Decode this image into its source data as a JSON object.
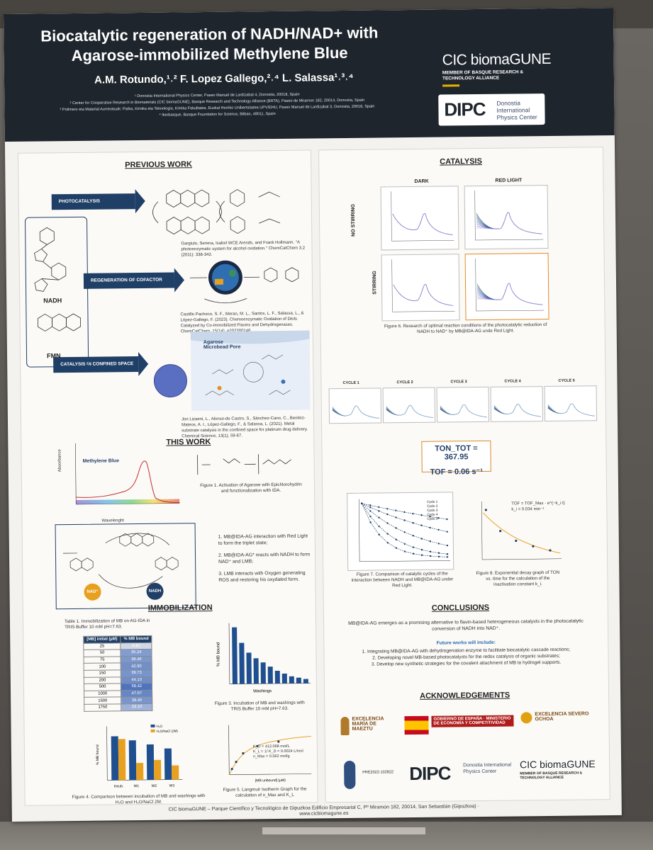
{
  "header": {
    "title_line1": "Biocatalytic regeneration of NADH/NAD+ with",
    "title_line2": "Agarose-immobilized Methylene Blue",
    "authors": "A.M. Rotundo,¹˒² F. Lopez Gallego,²˒⁴ L. Salassa¹˒³˒⁴",
    "affiliations": [
      "¹ Donostia International Physics Center, Paseo Manuel de Lardizabal 4, Donostia, 20018, Spain",
      "² Center for Cooperative Research in Biomaterials (CIC biomaGUNE), Basque Research and Technology Alliance (BRTA), Paseo de Miramon 182, 20014, Donostia, Spain",
      "³ Polimero eta Material Aurreratuak: Fisika, Kimika eta Teknologia, Kimika Fakultatea, Euskal Herriko Unibertsitatea UPV/EHU, Paseo Manuel de Lardizabal 3, Donostia, 20018, Spain",
      "⁴ Ikerbasque, Basque Foundation for Science, Bilbao, 48011, Spain"
    ],
    "cic_logo": "CIC biomaGUNE",
    "cic_sub": "MEMBER OF BASQUE RESEARCH & TECHNOLOGY ALLIANCE",
    "dipc_mark": "DIPC",
    "dipc_name": "Donostia International Physics Center"
  },
  "left": {
    "previous_work": "PREVIOUS WORK",
    "photocatalysis": "PHOTOCATALYSIS",
    "regeneration": "REGENERATION OF COFACTOR",
    "confined": "CATALYSIS IN CONFINED SPACE",
    "nadh": "NADH",
    "fmn": "FMN",
    "agarose": "Agarose Microbead Pore",
    "ref1": "Gargiulo, Serena, Isabel WCE Arends, and Frank Hollmann. \"A photoenzymatic system for alcohol oxidation.\" ChemCatChem 3.2 (2011): 338-342.",
    "ref2": "Castillo Pacheco, S. F., Moran, M. L., Santos, L. F., Salassa, L., & López-Gallego, F. (2023). Chemoenzymatic Oxidation of Diols Catalyzed by Co-Immobilized Flavins and Dehydrogenases. ChemCatChem, 15(14), e202300146.",
    "ref3": "Jon Lizaeni, L., Alonso-de Castro, S., Sánchez-Cano, C., Benitez-Mateos, A. I., López-Gallego, F., & Salassa, L. (2021). Metal substrate catalysis in the confined space for platinum drug delivery. Chemical Science, 13(1), 59-67.",
    "this_work": "THIS WORK",
    "mb_label": "Methylene Blue",
    "abs_label": "Absorbance",
    "wl_label": "Wavelenght",
    "fig1": "Figure 1. Activation of Agarose with Epichlorohydrin and functionalization with IDA.",
    "steps": [
      "1. MB@IDA-AG interaction with Red Light to form the triplet state;",
      "2. MB@IDA-AG* reacts with NADH to form NAD⁺ and LMB;",
      "3. LMB interacts with Oxygen generating ROS and restoring his oxydated form."
    ],
    "nad_circle": "NAD⁺",
    "nadh_circle": "NADH",
    "immobilization": "IMMOBILIZATION",
    "table_caption": "Table 1. Immobilization of MB on AG-IDA in TRIS Buffer 10 mM pH=7.63.",
    "table_headers": [
      "[MB] initial (µM)",
      "% MB bound"
    ],
    "table_rows": [
      [
        "25",
        "0.81"
      ],
      [
        "50",
        "35.24"
      ],
      [
        "75",
        "38.46"
      ],
      [
        "100",
        "42.90"
      ],
      [
        "150",
        "39.73"
      ],
      [
        "200",
        "44.10"
      ],
      [
        "500",
        "58.42"
      ],
      [
        "1000",
        "47.67"
      ],
      [
        "1500",
        "39.45"
      ],
      [
        "1750",
        "23.10"
      ]
    ],
    "fig3": "Figure 3. Incubation of MB and washings with TRIS Buffer 10 mM pH=7.63.",
    "fig3_xlabel": "Washings",
    "fig3_ylabel": "% MB bound",
    "fig4": "Figure 4. Comparison between incubation of MB and washings with H₂O and H₂O/NaCl 2M.",
    "fig4_ylabel": "% MB bound",
    "fig4_legend": [
      "H₂O",
      "H₂O/NaCl (2M)"
    ],
    "fig4_cats": [
      "Incub.",
      "W1",
      "W2",
      "W3"
    ],
    "fig5": "Figure 5. Langmuir Isotherm Graph for the calculation of n_Max and K_L",
    "fig5_eq1": "K_D = 412.068 mol/L",
    "fig5_eq2": "K_L = 1/ K_D = 0.0024 L/mol",
    "fig5_eq3": "n_Max = 0.562 mol/g",
    "fig5_xlabel": "[MB unbound] (µM)"
  },
  "right": {
    "catalysis": "CATALYSIS",
    "dark": "DARK",
    "red_light": "RED LIGHT",
    "no_stirring": "NO STIRRING",
    "stirring": "STIRRING",
    "fig6": "Figure 6. Research of optimal reaction conditions of the photocatalytic reduction of NADH to NAD⁺ by MB@IDA-AG unde Red Light.",
    "cycles": [
      "CYCLE 1",
      "CYCLE 2",
      "CYCLE 3",
      "CYCLE 4",
      "CYCLE 5"
    ],
    "ton": "TON_TOT = 367.95",
    "tof": "TOF = 0.06 s⁻¹",
    "fig7": "Figure 7. Comparison of catalytic cycles of the interaction between NADH and MB@IDA-AG under Red Light.",
    "fig7_legend": [
      "Cycle 1",
      "Cycle 2",
      "Cycle 3",
      "Cycle 4",
      "Cycle 5"
    ],
    "fig8_eq1": "TOF = TOF_Max · e^(−k_i·t)",
    "fig8_eq2": "k_i = 0.034 min⁻¹",
    "fig8": "Figure 8. Exponential decay graph of TON vs. time for the calculation of the inactivation constant k_i.",
    "conclusions": "CONCLUSIONS",
    "concl_text": "MB@IDA-AG emerges as a promising alternative to flavin-based heterogeneous catalysts in the photocatalytic conversion of NADH into NAD⁺.",
    "future_title": "Future works will include:",
    "future": [
      "1. Integrating MB@IDA-AG with dehydrogenation enzyme to facilitate biocatalytic cascade reactions;",
      "2. Developing novel MB-based photocatalysts for the redox catalysis of organic substrates;",
      "3. Develop new synthetic strategies for the covalent attachment of MB to hydrogel supports."
    ],
    "ack": "ACKNOWLEDGEMENTS",
    "ack_maeztu": "EXCELENCIA MARÍA DE MAEZTU",
    "ack_gobierno": "GOBIERNO DE ESPAÑA · MINISTERIO DE ECONOMÍA Y COMPETITIVIDAD",
    "ack_severo": "EXCELENCIA SEVERO OCHOA",
    "ack_pre": "PRE2022-102822",
    "ack_dipc": "Donostia International Physics Center",
    "ack_cic": "CIC biomaGUNE"
  },
  "footer": {
    "line1": "CIC biomaGUNE – Parque Científico y Tecnológico de Gipuzkoa Edificio Empresarial C, Pº Miramón 182, 20014, San Sebastián (Gipuzkoa) ·",
    "line2": "www.cicbiomagune.es"
  }
}
